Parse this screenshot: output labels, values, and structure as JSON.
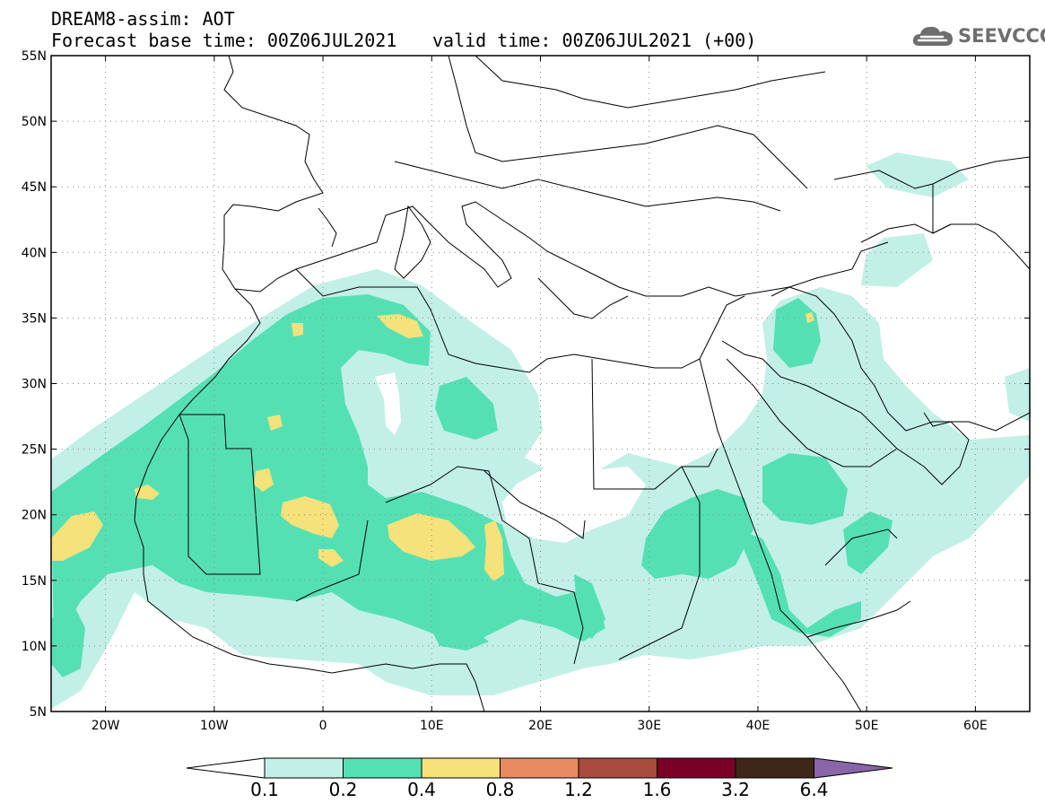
{
  "title": {
    "line1": "DREAM8-assim: AOT",
    "base_label": "Forecast base time: 00Z06JUL2021",
    "valid_label": "valid time: 00Z06JUL2021 (+00)"
  },
  "logo": {
    "text": "SEEVCCC",
    "icon": "cloud-icon"
  },
  "map": {
    "lon_range": [
      -25,
      65
    ],
    "lat_range": [
      5,
      55
    ],
    "lon_ticks": [
      {
        "value": -20,
        "label": "20W"
      },
      {
        "value": -10,
        "label": "10W"
      },
      {
        "value": 0,
        "label": "0"
      },
      {
        "value": 10,
        "label": "10E"
      },
      {
        "value": 20,
        "label": "20E"
      },
      {
        "value": 30,
        "label": "30E"
      },
      {
        "value": 40,
        "label": "40E"
      },
      {
        "value": 50,
        "label": "50E"
      },
      {
        "value": 60,
        "label": "60E"
      }
    ],
    "lat_ticks": [
      {
        "value": 55,
        "label": "55N"
      },
      {
        "value": 50,
        "label": "50N"
      },
      {
        "value": 45,
        "label": "45N"
      },
      {
        "value": 40,
        "label": "40N"
      },
      {
        "value": 35,
        "label": "35N"
      },
      {
        "value": 30,
        "label": "30N"
      },
      {
        "value": 25,
        "label": "25N"
      },
      {
        "value": 20,
        "label": "20N"
      },
      {
        "value": 15,
        "label": "15N"
      },
      {
        "value": 10,
        "label": "10N"
      },
      {
        "value": 5,
        "label": "5N"
      }
    ],
    "grid": "dotted"
  },
  "colorbar": {
    "levels": [
      "0.1",
      "0.2",
      "0.4",
      "0.8",
      "1.2",
      "1.6",
      "3.2",
      "6.4"
    ],
    "colors": [
      "#ffffff",
      "#c2f0e6",
      "#55e0b4",
      "#f5e27a",
      "#e88a62",
      "#a84c3e",
      "#7a0028",
      "#3e2618",
      "#8a65a8"
    ]
  }
}
